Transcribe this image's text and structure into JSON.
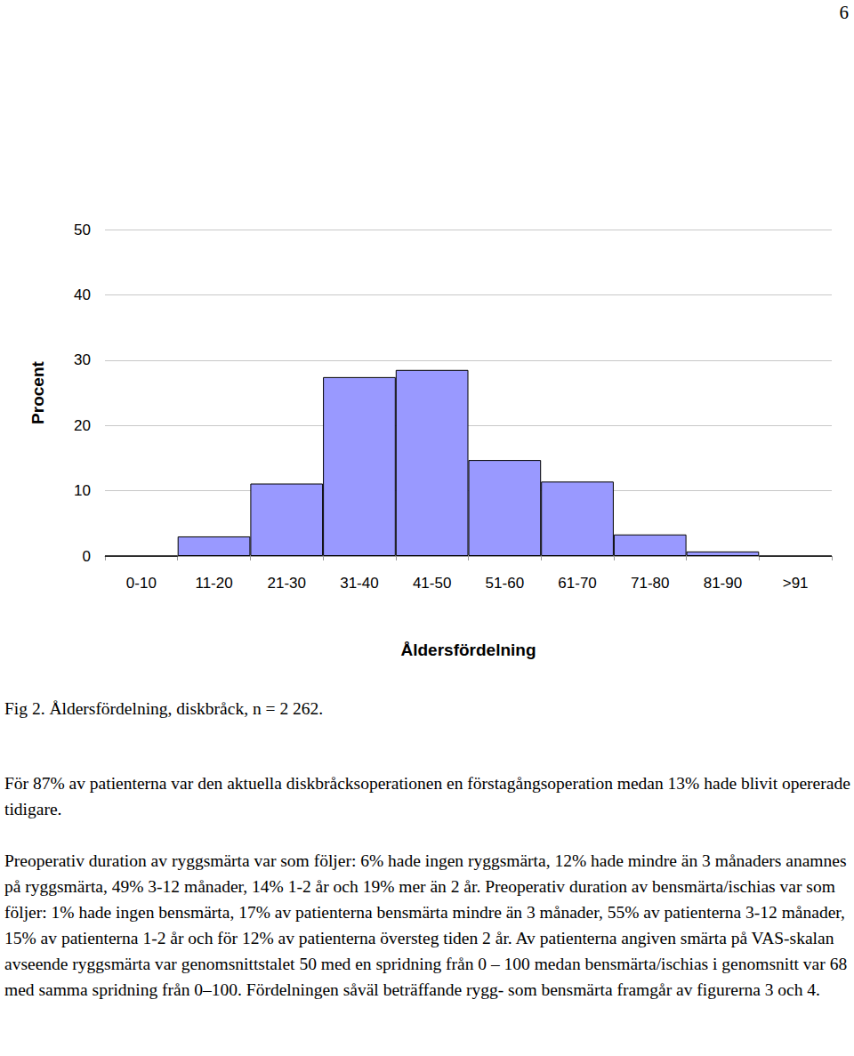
{
  "page_number": "6",
  "chart_data": {
    "type": "bar",
    "categories": [
      "0-10",
      "11-20",
      "21-30",
      "31-40",
      "41-50",
      "51-60",
      "61-70",
      "71-80",
      "81-90",
      ">91"
    ],
    "values": [
      0,
      3.0,
      11.1,
      27.4,
      28.5,
      14.7,
      11.4,
      3.3,
      0.7,
      0
    ],
    "color": "#9999ff",
    "ylim": [
      0,
      50
    ],
    "yticks": [
      0,
      10,
      20,
      30,
      40,
      50
    ],
    "grid": true,
    "y_label": "Procent",
    "x_label": "Åldersfördelning"
  },
  "caption": "Fig 2. Åldersfördelning, diskbråck, n = 2 262.",
  "paragraphs": [
    "För 87% av patienterna var den aktuella diskbråcksoperationen en förstagångsoperation medan 13% hade blivit opererade tidigare.",
    "Preoperativ duration av ryggsmärta var som följer: 6% hade ingen ryggsmärta, 12% hade mindre än 3 månaders anamnes på ryggsmärta, 49% 3-12 månader, 14% 1-2 år och 19% mer än 2 år. Preoperativ duration av bensmärta/ischias var som följer: 1% hade ingen bensmärta, 17% av patienterna bensmärta mindre än 3 månader, 55% av patienterna 3-12 månader, 15% av patienterna 1-2 år och för 12% av patienterna översteg tiden 2 år. Av patienterna angiven smärta på VAS-skalan avseende ryggsmärta var genomsnittstalet 50 med en spridning från 0 – 100 medan bensmärta/ischias i genomsnitt var 68 med samma spridning från 0–100. Fördelningen såväl beträffande rygg- som bensmärta framgår av figurerna 3 och 4."
  ]
}
